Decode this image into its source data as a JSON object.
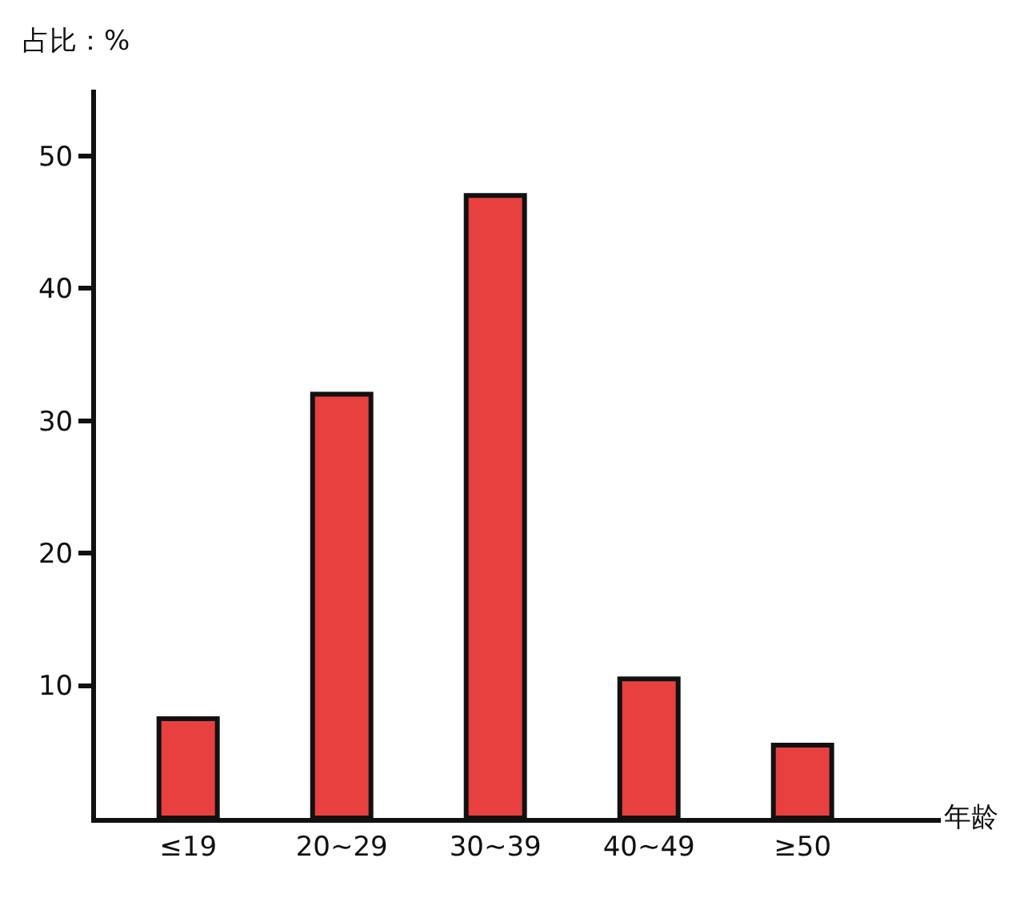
{
  "chart_data": {
    "type": "bar",
    "ylabel": "占比：%",
    "xlabel": "年龄",
    "categories": [
      "≤19",
      "20~29",
      "30~39",
      "40~49",
      "≥50"
    ],
    "values": [
      7.5,
      32,
      47,
      10.5,
      5.5
    ],
    "color": "#e8403f",
    "ylim": [
      0,
      55
    ],
    "yticks": [
      10,
      20,
      30,
      40,
      50
    ],
    "grid": false
  }
}
